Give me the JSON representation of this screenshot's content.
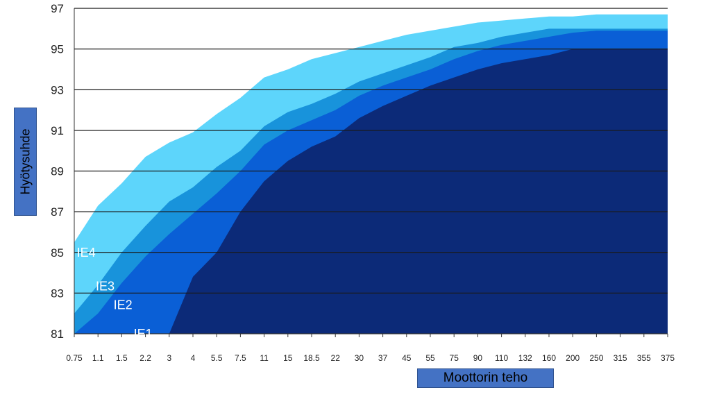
{
  "chart_data": {
    "type": "area",
    "title": "",
    "xlabel": "Moottorin teho",
    "ylabel": "Hyötysuhde",
    "ylim": [
      81,
      97
    ],
    "yticks": [
      81,
      83,
      85,
      87,
      89,
      91,
      93,
      95,
      97
    ],
    "grid": true,
    "categories": [
      "0.75",
      "1.1",
      "1.5",
      "2.2",
      "3",
      "4",
      "5.5",
      "7.5",
      "11",
      "15",
      "18.5",
      "22",
      "30",
      "37",
      "45",
      "55",
      "75",
      "90",
      "110",
      "132",
      "160",
      "200",
      "250",
      "315",
      "355",
      "375"
    ],
    "series": [
      {
        "name": "IE4",
        "color": "#5dd5fb",
        "values": [
          85.5,
          87.3,
          88.4,
          89.7,
          90.4,
          90.9,
          91.8,
          92.6,
          93.6,
          94.0,
          94.5,
          94.8,
          95.1,
          95.4,
          95.7,
          95.9,
          96.1,
          96.3,
          96.4,
          96.5,
          96.6,
          96.6,
          96.7,
          96.7,
          96.7,
          96.7
        ]
      },
      {
        "name": "IE3",
        "color": "#1893db",
        "values": [
          82.0,
          83.4,
          85.0,
          86.3,
          87.5,
          88.2,
          89.2,
          90.0,
          91.2,
          91.9,
          92.3,
          92.8,
          93.4,
          93.8,
          94.2,
          94.6,
          95.1,
          95.3,
          95.6,
          95.8,
          96.0,
          96.0,
          96.0,
          96.0,
          96.0,
          96.0
        ]
      },
      {
        "name": "IE2",
        "color": "#0a5fd6",
        "values": [
          81.0,
          82.0,
          83.5,
          84.8,
          85.9,
          86.9,
          87.9,
          89.0,
          90.3,
          91.0,
          91.5,
          92.0,
          92.7,
          93.2,
          93.6,
          94.0,
          94.5,
          94.9,
          95.2,
          95.4,
          95.6,
          95.8,
          95.9,
          95.9,
          95.9,
          95.9
        ]
      },
      {
        "name": "IE1",
        "color": "#0c2a78",
        "values": [
          null,
          null,
          81.0,
          81.0,
          81.0,
          83.8,
          85.0,
          87.0,
          88.5,
          89.5,
          90.2,
          90.7,
          91.6,
          92.2,
          92.7,
          93.2,
          93.6,
          94.0,
          94.3,
          94.5,
          94.7,
          95.0,
          95.0,
          95.0,
          95.0,
          95.0
        ]
      }
    ],
    "area_labels": [
      "IE4",
      "IE3",
      "IE2",
      "IE1"
    ]
  }
}
